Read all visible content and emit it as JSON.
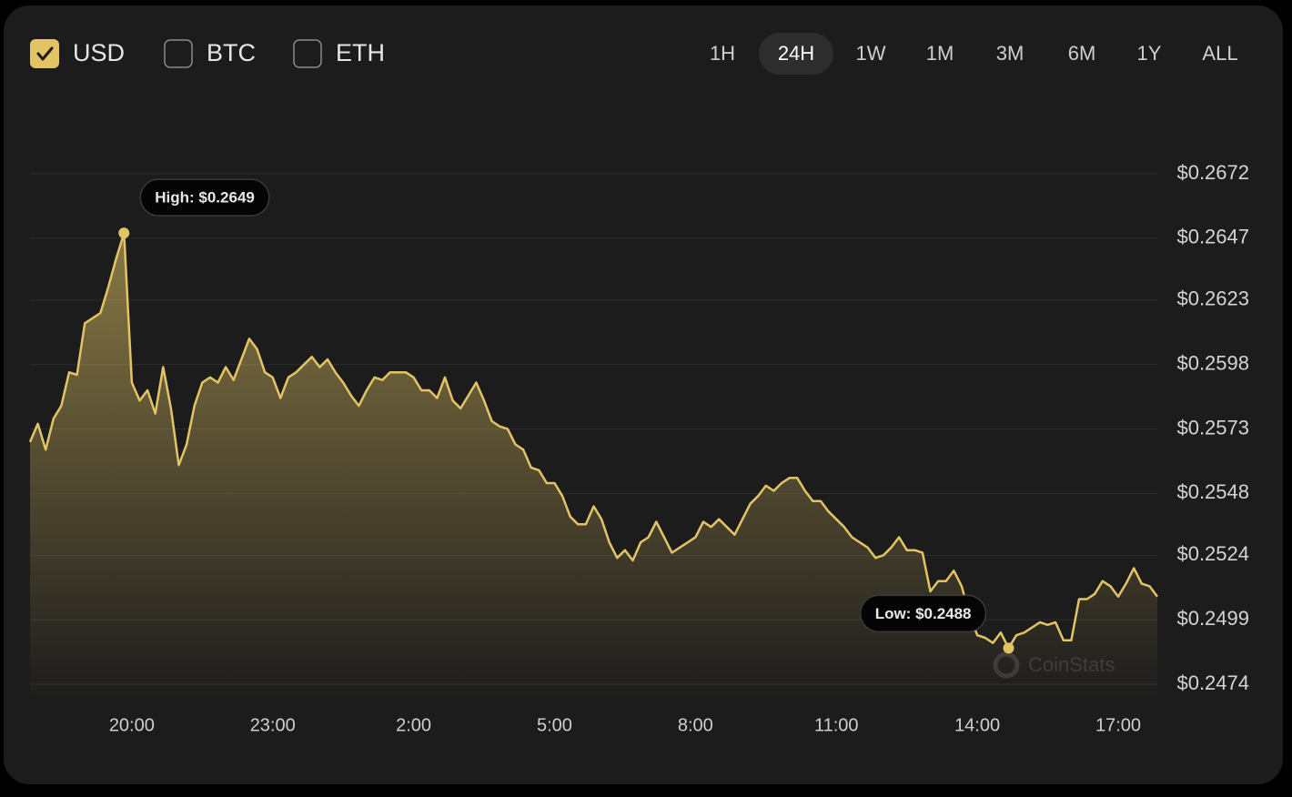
{
  "currencies": [
    {
      "label": "USD",
      "checked": true
    },
    {
      "label": "BTC",
      "checked": false
    },
    {
      "label": "ETH",
      "checked": false
    }
  ],
  "ranges": [
    "1H",
    "24H",
    "1W",
    "1M",
    "3M",
    "6M",
    "1Y",
    "ALL"
  ],
  "selected_range": "24H",
  "watermark": "CoinStats",
  "chart_data": {
    "type": "area",
    "color": "#e3c465",
    "grid": true,
    "high_label": "High: $0.2649",
    "low_label": "Low: $0.2488",
    "categories": [
      null,
      null,
      null,
      null,
      null,
      null,
      null,
      null,
      null,
      null,
      null,
      null,
      null,
      "20:00",
      null,
      null,
      null,
      null,
      null,
      null,
      null,
      null,
      null,
      null,
      null,
      null,
      null,
      null,
      null,
      null,
      null,
      "23:00",
      null,
      null,
      null,
      null,
      null,
      null,
      null,
      null,
      null,
      null,
      null,
      null,
      null,
      null,
      null,
      null,
      null,
      "2:00",
      null,
      null,
      null,
      null,
      null,
      null,
      null,
      null,
      null,
      null,
      null,
      null,
      null,
      null,
      null,
      null,
      null,
      "5:00",
      null,
      null,
      null,
      null,
      null,
      null,
      null,
      null,
      null,
      null,
      null,
      null,
      null,
      null,
      null,
      null,
      null,
      "8:00",
      null,
      null,
      null,
      null,
      null,
      null,
      null,
      null,
      null,
      null,
      null,
      null,
      null,
      null,
      null,
      null,
      null,
      "11:00",
      null,
      null,
      null,
      null,
      null,
      null,
      null,
      null,
      null,
      null,
      null,
      null,
      null,
      null,
      null,
      null,
      null,
      "14:00",
      null,
      null,
      null,
      null,
      null,
      null,
      null,
      null,
      null,
      null,
      null,
      null,
      null,
      null,
      null,
      null,
      null,
      "17:00",
      null,
      null,
      null,
      null,
      null
    ],
    "values": [
      0.2568,
      0.2575,
      0.2565,
      0.2577,
      0.2582,
      0.2595,
      0.2594,
      0.2614,
      0.2616,
      0.2618,
      0.2628,
      0.2639,
      0.2649,
      0.2591,
      0.2584,
      0.2588,
      0.2579,
      0.2597,
      0.2581,
      0.2559,
      0.2567,
      0.2582,
      0.2591,
      0.2593,
      0.2591,
      0.2597,
      0.2592,
      0.26,
      0.2608,
      0.2604,
      0.2595,
      0.2593,
      0.2585,
      0.2593,
      0.2595,
      0.2598,
      0.2601,
      0.2597,
      0.26,
      0.2595,
      0.2591,
      0.2586,
      0.2582,
      0.2588,
      0.2593,
      0.2592,
      0.2595,
      0.2595,
      0.2595,
      0.2593,
      0.2588,
      0.2588,
      0.2585,
      0.2593,
      0.2584,
      0.2581,
      0.2586,
      0.2591,
      0.2584,
      0.2576,
      0.2574,
      0.2573,
      0.2567,
      0.2565,
      0.2558,
      0.2557,
      0.2552,
      0.2552,
      0.2547,
      0.2539,
      0.2536,
      0.2536,
      0.2543,
      0.2538,
      0.2529,
      0.2523,
      0.2526,
      0.2522,
      0.2529,
      0.2531,
      0.2537,
      0.2531,
      0.2525,
      0.2527,
      0.2529,
      0.2531,
      0.2537,
      0.2535,
      0.2538,
      0.2535,
      0.2532,
      0.2538,
      0.2544,
      0.2547,
      0.2551,
      0.2549,
      0.2552,
      0.2554,
      0.2554,
      0.2549,
      0.2545,
      0.2545,
      0.2541,
      0.2538,
      0.2535,
      0.2531,
      0.2529,
      0.2527,
      0.2523,
      0.2524,
      0.2527,
      0.2531,
      0.2526,
      0.2526,
      0.2525,
      0.251,
      0.2514,
      0.2514,
      0.2518,
      0.2512,
      0.2501,
      0.2493,
      0.2492,
      0.249,
      0.2494,
      0.2488,
      0.2493,
      0.2494,
      0.2496,
      0.2498,
      0.2497,
      0.2498,
      0.2491,
      0.2491,
      0.2507,
      0.2507,
      0.2509,
      0.2514,
      0.2512,
      0.2508,
      0.2513,
      0.2519,
      0.2513,
      0.2512,
      0.2508
    ],
    "ylim": [
      0.2474,
      0.2672
    ],
    "yticks": [
      {
        "value": 0.2672,
        "label": "$0.2672"
      },
      {
        "value": 0.2647,
        "label": "$0.2647"
      },
      {
        "value": 0.2623,
        "label": "$0.2623"
      },
      {
        "value": 0.2598,
        "label": "$0.2598"
      },
      {
        "value": 0.2573,
        "label": "$0.2573"
      },
      {
        "value": 0.2548,
        "label": "$0.2548"
      },
      {
        "value": 0.2524,
        "label": "$0.2524"
      },
      {
        "value": 0.2499,
        "label": "$0.2499"
      },
      {
        "value": 0.2474,
        "label": "$0.2474"
      }
    ]
  }
}
